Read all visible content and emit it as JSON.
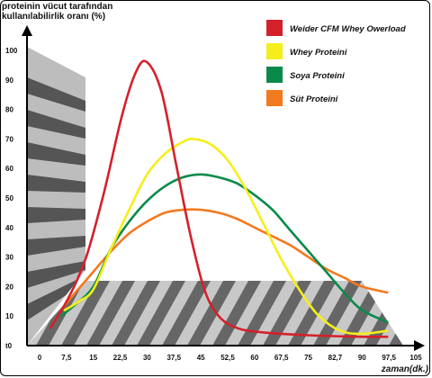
{
  "chart_data": {
    "type": "line",
    "ylabel_line1": "proteinin vücut tarafından",
    "ylabel_line2": "kullanılabilirlik oranı (%)",
    "xlabel": "zaman(dk.)",
    "x_ticks": [
      "0",
      "7,5",
      "15",
      "22,5",
      "30",
      "37,5",
      "45",
      "52,5",
      "60",
      "67,5",
      "75",
      "82,7",
      "90",
      "97,5",
      "105"
    ],
    "y_ticks": [
      "t0",
      "10",
      "20",
      "30",
      "40",
      "50",
      "60",
      "70",
      "80",
      "90",
      "100"
    ],
    "xlim": [
      0,
      105
    ],
    "ylim": [
      0,
      100
    ],
    "legend_position": "top-right",
    "series": [
      {
        "name": "Weider CFM Whey Owerload",
        "color": "#d4202a",
        "points": [
          [
            3,
            6
          ],
          [
            8,
            16
          ],
          [
            13,
            30
          ],
          [
            18,
            52
          ],
          [
            23,
            78
          ],
          [
            27,
            93
          ],
          [
            30,
            96
          ],
          [
            34,
            86
          ],
          [
            38,
            62
          ],
          [
            42,
            38
          ],
          [
            46,
            19
          ],
          [
            50,
            10
          ],
          [
            55,
            6
          ],
          [
            62,
            4.5
          ],
          [
            75,
            3.5
          ],
          [
            90,
            3
          ],
          [
            97,
            3
          ]
        ]
      },
      {
        "name": "Whey Proteini",
        "color": "#f5ee1c",
        "points": [
          [
            7,
            12
          ],
          [
            11,
            15
          ],
          [
            15,
            19
          ],
          [
            20,
            33
          ],
          [
            25,
            46
          ],
          [
            30,
            58
          ],
          [
            35,
            65
          ],
          [
            40,
            69
          ],
          [
            43,
            70
          ],
          [
            48,
            68
          ],
          [
            53,
            62
          ],
          [
            58,
            52
          ],
          [
            63,
            40
          ],
          [
            68,
            28
          ],
          [
            73,
            18
          ],
          [
            78,
            10
          ],
          [
            84,
            5
          ],
          [
            90,
            4
          ],
          [
            97,
            5
          ]
        ]
      },
      {
        "name": "Soya Proteini",
        "color": "#0a8a4a",
        "points": [
          [
            6,
            10
          ],
          [
            10,
            14
          ],
          [
            15,
            20
          ],
          [
            20,
            33
          ],
          [
            25,
            42
          ],
          [
            30,
            49
          ],
          [
            35,
            54
          ],
          [
            40,
            57
          ],
          [
            45,
            58
          ],
          [
            50,
            57
          ],
          [
            55,
            55
          ],
          [
            60,
            51
          ],
          [
            65,
            46
          ],
          [
            70,
            39
          ],
          [
            75,
            32
          ],
          [
            80,
            25
          ],
          [
            85,
            18
          ],
          [
            90,
            12
          ],
          [
            97,
            8
          ]
        ]
      },
      {
        "name": "Süt Proteini",
        "color": "#f27a1f",
        "points": [
          [
            6,
            12
          ],
          [
            10,
            18
          ],
          [
            15,
            25
          ],
          [
            20,
            32
          ],
          [
            25,
            38
          ],
          [
            30,
            42
          ],
          [
            35,
            45
          ],
          [
            40,
            46
          ],
          [
            45,
            46
          ],
          [
            50,
            45
          ],
          [
            55,
            43
          ],
          [
            60,
            40
          ],
          [
            65,
            37
          ],
          [
            70,
            34
          ],
          [
            75,
            30
          ],
          [
            80,
            26
          ],
          [
            85,
            23
          ],
          [
            90,
            20
          ],
          [
            97,
            18
          ]
        ]
      }
    ]
  }
}
